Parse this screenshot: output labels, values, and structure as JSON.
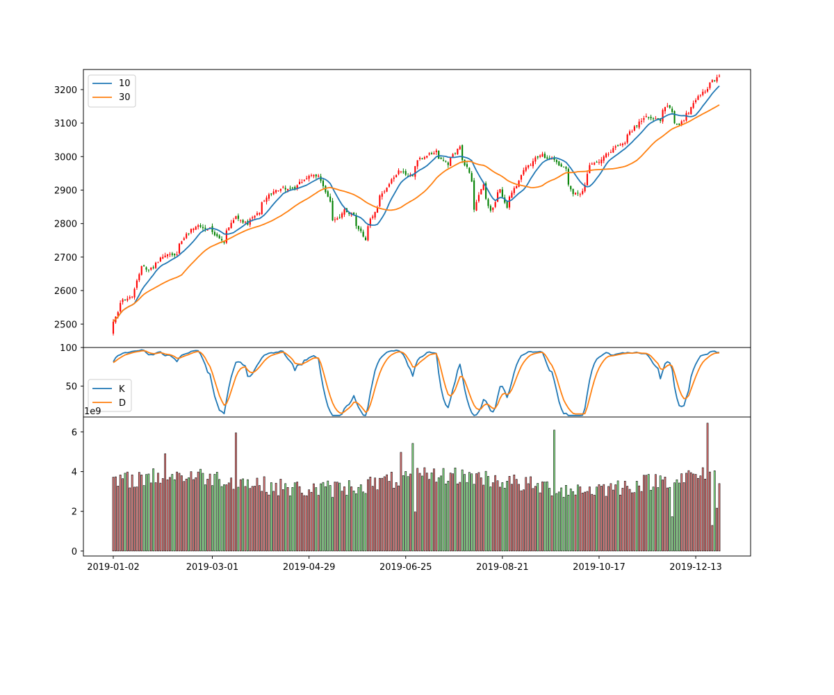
{
  "chart_data": [
    {
      "type": "candlestick",
      "legend": {
        "placement": "upper-left",
        "entries": [
          "10",
          "30"
        ]
      },
      "ylim": [
        2430,
        3260
      ],
      "yticks": [
        2500,
        2600,
        2700,
        2800,
        2900,
        3000,
        3100,
        3200
      ],
      "x": {
        "start": "2019-01-02",
        "end": "2019-12-27",
        "tick_labels": [
          "2019-01-02",
          "2019-03-01",
          "2019-04-29",
          "2019-06-25",
          "2019-08-21",
          "2019-10-17",
          "2019-12-13"
        ]
      },
      "close_anchors": [
        [
          "2019-01-02",
          2510
        ],
        [
          "2019-01-04",
          2532
        ],
        [
          "2019-01-08",
          2575
        ],
        [
          "2019-01-14",
          2582
        ],
        [
          "2019-01-18",
          2670
        ],
        [
          "2019-01-25",
          2664
        ],
        [
          "2019-02-01",
          2706
        ],
        [
          "2019-02-08",
          2707
        ],
        [
          "2019-02-15",
          2775
        ],
        [
          "2019-02-22",
          2793
        ],
        [
          "2019-02-28",
          2784
        ],
        [
          "2019-03-08",
          2743
        ],
        [
          "2019-03-15",
          2822
        ],
        [
          "2019-03-22",
          2800
        ],
        [
          "2019-03-29",
          2834
        ],
        [
          "2019-04-05",
          2892
        ],
        [
          "2019-04-12",
          2907
        ],
        [
          "2019-04-19",
          2905
        ],
        [
          "2019-04-30",
          2946
        ],
        [
          "2019-05-06",
          2932
        ],
        [
          "2019-05-13",
          2812
        ],
        [
          "2019-05-20",
          2840
        ],
        [
          "2019-05-24",
          2826
        ],
        [
          "2019-05-31",
          2752
        ],
        [
          "2019-06-05",
          2826
        ],
        [
          "2019-06-10",
          2886
        ],
        [
          "2019-06-20",
          2954
        ],
        [
          "2019-06-28",
          2942
        ],
        [
          "2019-07-03",
          2996
        ],
        [
          "2019-07-12",
          3014
        ],
        [
          "2019-07-19",
          2977
        ],
        [
          "2019-07-26",
          3026
        ],
        [
          "2019-08-01",
          2953
        ],
        [
          "2019-08-05",
          2844
        ],
        [
          "2019-08-09",
          2919
        ],
        [
          "2019-08-14",
          2840
        ],
        [
          "2019-08-20",
          2900
        ],
        [
          "2019-08-23",
          2847
        ],
        [
          "2019-08-30",
          2926
        ],
        [
          "2019-09-06",
          2979
        ],
        [
          "2019-09-13",
          3007
        ],
        [
          "2019-09-20",
          2992
        ],
        [
          "2019-09-27",
          2962
        ],
        [
          "2019-10-02",
          2888
        ],
        [
          "2019-10-08",
          2893
        ],
        [
          "2019-10-11",
          2970
        ],
        [
          "2019-10-18",
          2986
        ],
        [
          "2019-10-25",
          3023
        ],
        [
          "2019-10-31",
          3038
        ],
        [
          "2019-11-08",
          3093
        ],
        [
          "2019-11-15",
          3120
        ],
        [
          "2019-11-22",
          3110
        ],
        [
          "2019-11-27",
          3153
        ],
        [
          "2019-12-03",
          3093
        ],
        [
          "2019-12-10",
          3132
        ],
        [
          "2019-12-13",
          3169
        ],
        [
          "2019-12-18",
          3191
        ],
        [
          "2019-12-23",
          3224
        ],
        [
          "2019-12-27",
          3240
        ]
      ],
      "series": [
        {
          "name": "10",
          "kind": "moving_average",
          "window": 10,
          "color": "#1f77b4"
        },
        {
          "name": "30",
          "kind": "moving_average",
          "window": 30,
          "color": "#ff7f0e"
        }
      ],
      "up_color": "#ff0000",
      "down_color": "#008000"
    },
    {
      "type": "line",
      "legend": {
        "placement": "lower-left",
        "entries": [
          "K",
          "D"
        ]
      },
      "ylim": [
        10,
        100
      ],
      "yticks": [
        50,
        100
      ],
      "series": [
        {
          "name": "K",
          "color": "#1f77b4"
        },
        {
          "name": "D",
          "color": "#ff7f0e"
        }
      ]
    },
    {
      "type": "bar",
      "offset_text": "1e9",
      "ylim": [
        -0.25,
        6.75
      ],
      "yticks": [
        0,
        2,
        4,
        6
      ],
      "up_color": "#f08080",
      "down_color": "#90ee90",
      "spikes": [
        [
          "2019-01-02",
          3.72
        ],
        [
          "2019-02-01",
          4.9
        ],
        [
          "2019-03-15",
          5.95
        ],
        [
          "2019-06-21",
          4.97
        ],
        [
          "2019-06-28",
          5.42
        ],
        [
          "2019-07-01",
          1.97
        ],
        [
          "2019-09-20",
          6.09
        ],
        [
          "2019-11-29",
          1.73
        ],
        [
          "2019-12-20",
          6.44
        ],
        [
          "2019-12-24",
          1.29
        ],
        [
          "2019-12-26",
          2.16
        ]
      ]
    }
  ]
}
